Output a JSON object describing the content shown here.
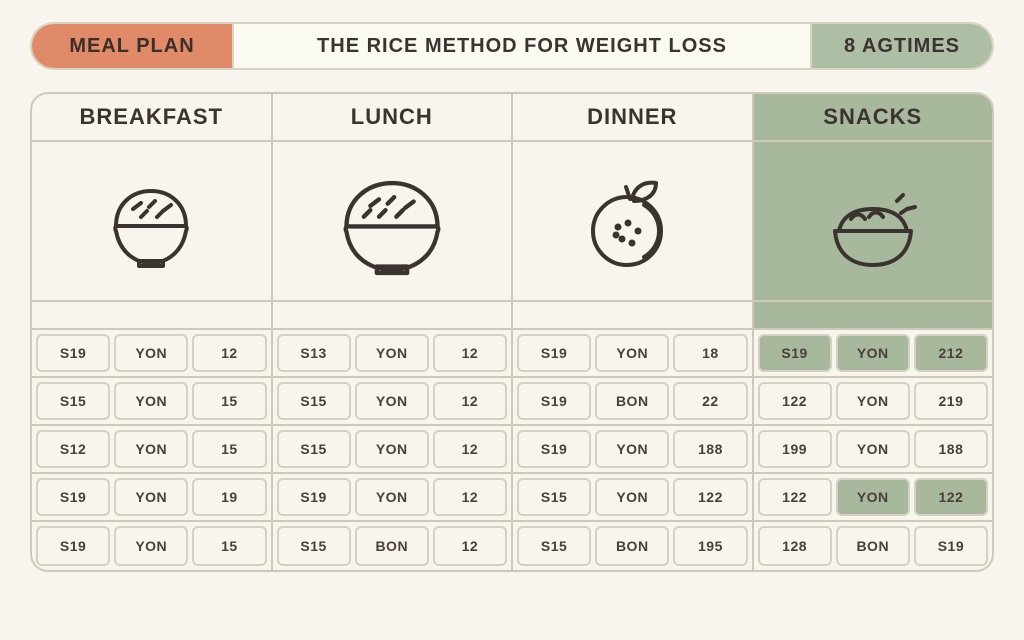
{
  "header": {
    "left": "MEAL PLAN",
    "mid": "THE RICE METHOD FOR WEIGHT LOSS",
    "right": "8 AGTIMES"
  },
  "columns": [
    "BREAKFAST",
    "LUNCH",
    "DINNER",
    "SNACKS"
  ],
  "green_header_index": 3,
  "table": {
    "rows": [
      [
        [
          "S19",
          "YON",
          "12"
        ],
        [
          "S13",
          "YON",
          "12"
        ],
        [
          "S19",
          "YON",
          "18"
        ],
        [
          "S19",
          "YON",
          "212"
        ]
      ],
      [
        [
          "S15",
          "YON",
          "15"
        ],
        [
          "S15",
          "YON",
          "12"
        ],
        [
          "S19",
          "BON",
          "22"
        ],
        [
          "122",
          "YON",
          "219"
        ]
      ],
      [
        [
          "S12",
          "YON",
          "15"
        ],
        [
          "S15",
          "YON",
          "12"
        ],
        [
          "S19",
          "YON",
          "188"
        ],
        [
          "199",
          "YON",
          "188"
        ]
      ],
      [
        [
          "S19",
          "YON",
          "19"
        ],
        [
          "S19",
          "YON",
          "12"
        ],
        [
          "S15",
          "YON",
          "122"
        ],
        [
          "122",
          "YON",
          "122"
        ]
      ],
      [
        [
          "S19",
          "YON",
          "15"
        ],
        [
          "S15",
          "BON",
          "12"
        ],
        [
          "S15",
          "BON",
          "195"
        ],
        [
          "128",
          "BON",
          "S19"
        ]
      ]
    ],
    "green_cells": [
      {
        "row": 0,
        "col": 3,
        "sub": [
          0,
          1,
          2
        ]
      },
      {
        "row": 3,
        "col": 3,
        "sub": [
          1,
          2
        ]
      }
    ]
  },
  "colors": {
    "bg": "#f7f5ed",
    "accent_left": "#e18a6a",
    "accent_right": "#aebea4",
    "green_cell": "#a8b89d",
    "border": "#cfcab8",
    "text": "#3b3330"
  }
}
